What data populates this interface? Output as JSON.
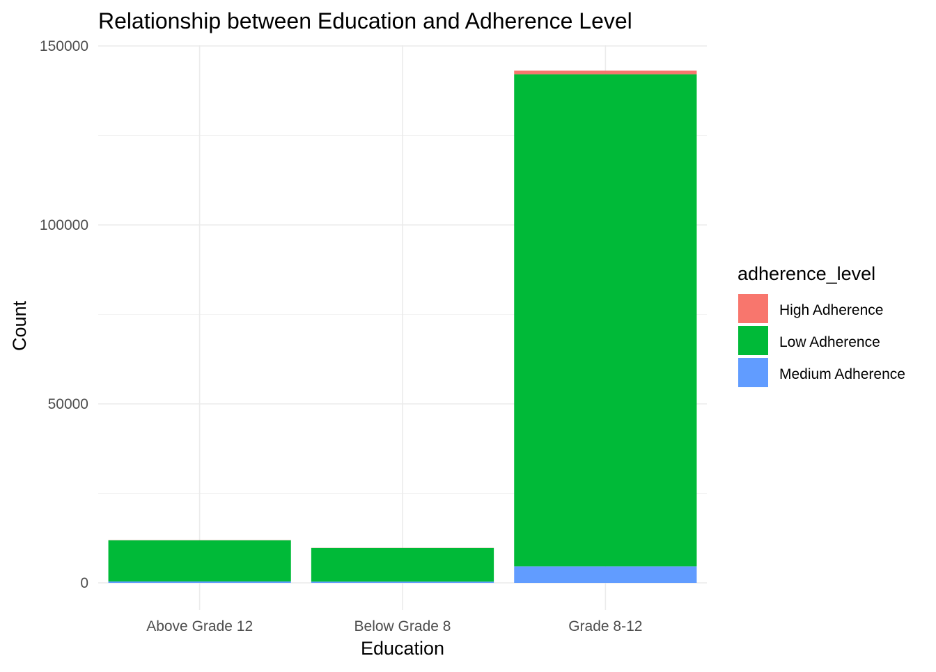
{
  "chart_data": {
    "type": "bar",
    "stacked": true,
    "title": "Relationship between Education and Adherence Level",
    "xlabel": "Education",
    "ylabel": "Count",
    "categories": [
      "Above Grade 12",
      "Below Grade 8",
      "Grade 8-12"
    ],
    "series": [
      {
        "name": "Medium Adherence",
        "color": "#619CFF",
        "values": [
          400,
          350,
          4600
        ]
      },
      {
        "name": "Low Adherence",
        "color": "#00BA38",
        "values": [
          11500,
          9400,
          137500
        ]
      },
      {
        "name": "High Adherence",
        "color": "#F8766D",
        "values": [
          50,
          40,
          1000
        ]
      }
    ],
    "stack_order_bottom_to_top": [
      "Medium Adherence",
      "Low Adherence",
      "High Adherence"
    ],
    "ylim": [
      0,
      150000
    ],
    "yticks": [
      0,
      50000,
      100000,
      150000
    ],
    "ytick_labels": [
      "0",
      "50000",
      "100000",
      "150000"
    ],
    "grid": true,
    "legend": {
      "title": "adherence_level",
      "placement": "right",
      "entries": [
        "High Adherence",
        "Low Adherence",
        "Medium Adherence"
      ]
    }
  }
}
